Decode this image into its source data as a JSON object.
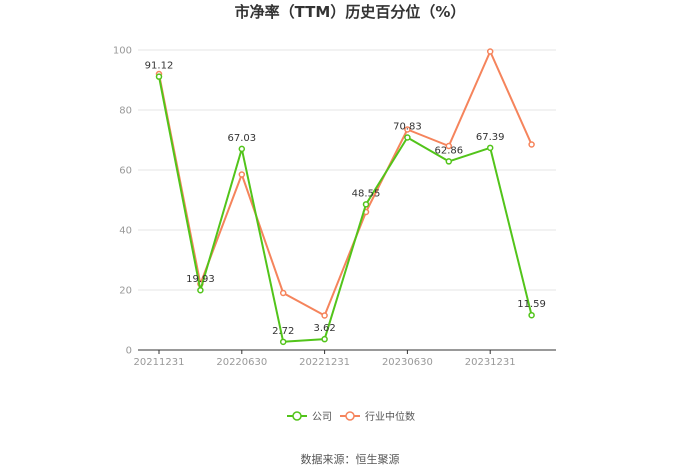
{
  "colors": {
    "company": "#52c41a",
    "industry": "#f5845c",
    "grid": "#e6e6e6",
    "axis": "#333333"
  },
  "chart_data": {
    "type": "line",
    "title": "市净率（TTM）历史百分位（%）",
    "xlabel": "",
    "ylabel": "",
    "ylim": [
      0,
      100
    ],
    "yticks": [
      0,
      20,
      40,
      60,
      80,
      100
    ],
    "x_tick_labels": [
      "20211231",
      "20220630",
      "20221231",
      "20230630",
      "20231231"
    ],
    "x": [
      "20211231",
      "20220331",
      "20220630",
      "20220930",
      "20221231",
      "20230331",
      "20230630",
      "20230930",
      "20231231",
      "20240331"
    ],
    "series": [
      {
        "name": "公司",
        "color_key": "company",
        "values": [
          91.12,
          19.93,
          67.03,
          2.72,
          3.62,
          48.55,
          70.83,
          62.86,
          67.39,
          11.59
        ],
        "labels": [
          "91.12",
          "19.93",
          "67.03",
          "2.72",
          "3.62",
          "48.55",
          "70.83",
          "62.86",
          "67.39",
          "11.59"
        ]
      },
      {
        "name": "行业中位数",
        "color_key": "industry",
        "values": [
          92.0,
          22.0,
          58.5,
          19.0,
          11.5,
          46.0,
          73.5,
          68.0,
          99.5,
          68.5
        ]
      }
    ],
    "grid": true,
    "legend": "bottom-center"
  },
  "source_text": "数据来源：恒生聚源"
}
